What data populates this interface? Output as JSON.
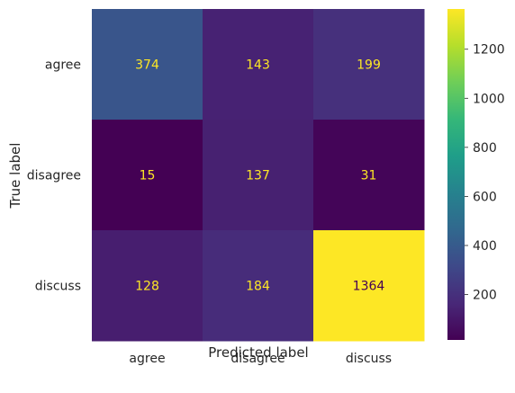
{
  "chart_data": {
    "type": "heatmap",
    "title": "",
    "xlabel": "Predicted label",
    "ylabel": "True label",
    "x_categories": [
      "agree",
      "disagree",
      "discuss"
    ],
    "y_categories": [
      "agree",
      "disagree",
      "discuss"
    ],
    "values": [
      [
        374,
        143,
        199
      ],
      [
        15,
        137,
        31
      ],
      [
        128,
        184,
        1364
      ]
    ],
    "colormap": "viridis",
    "color_range": [
      15,
      1364
    ],
    "colorbar_ticks": [
      200,
      400,
      600,
      800,
      1000,
      1200
    ],
    "grid": false,
    "cell_text_colors": {
      "on_dark": "#fde725",
      "on_light": "#440154"
    }
  }
}
